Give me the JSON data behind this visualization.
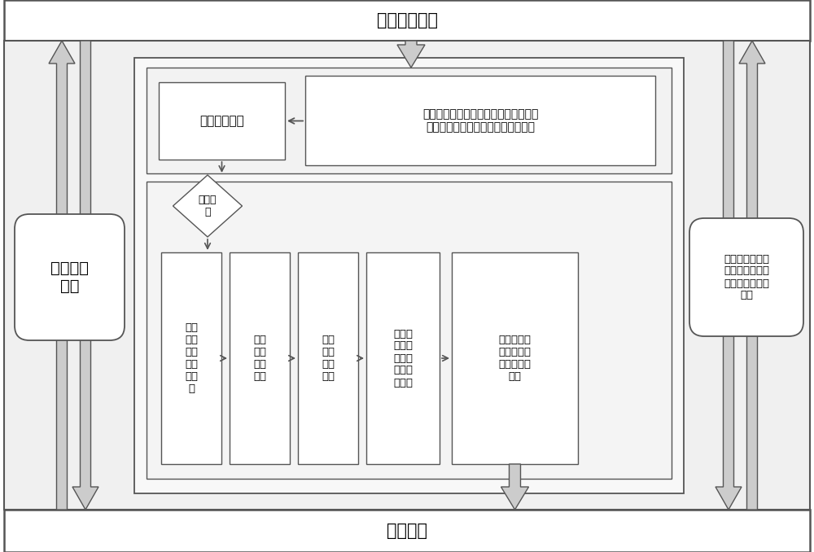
{
  "title_top": "定值整定系统",
  "title_bottom": "保信系统",
  "left_box_text": "定值导入\n结果",
  "right_box_text": "全网所有厂站名\n称及各厂站的各\n类一次设备名称\n模型",
  "top_right_box_text": "根据保信导出模型修改自身系统厂站、\n一次设备名称保信模型建立映射关系",
  "top_left_box_text": "创建定值文件",
  "diamond_text": "模型对\n接",
  "flow_boxes": [
    "厂站\n与一\n次设\n备名\n称解\n析",
    "二次\n设备\n名称\n解析",
    "生成\n唯一\n整型\n编号",
    "与保信\n系统唯\n一整型\n编号自\n动匹配",
    "通过远方控\n制或调试软\n件实现定值\n传送"
  ],
  "bg_color": "#ffffff",
  "box_color": "#ffffff",
  "border_color": "#555555",
  "light_gray": "#dddddd",
  "mid_gray": "#bbbbbb",
  "font_size": 11
}
